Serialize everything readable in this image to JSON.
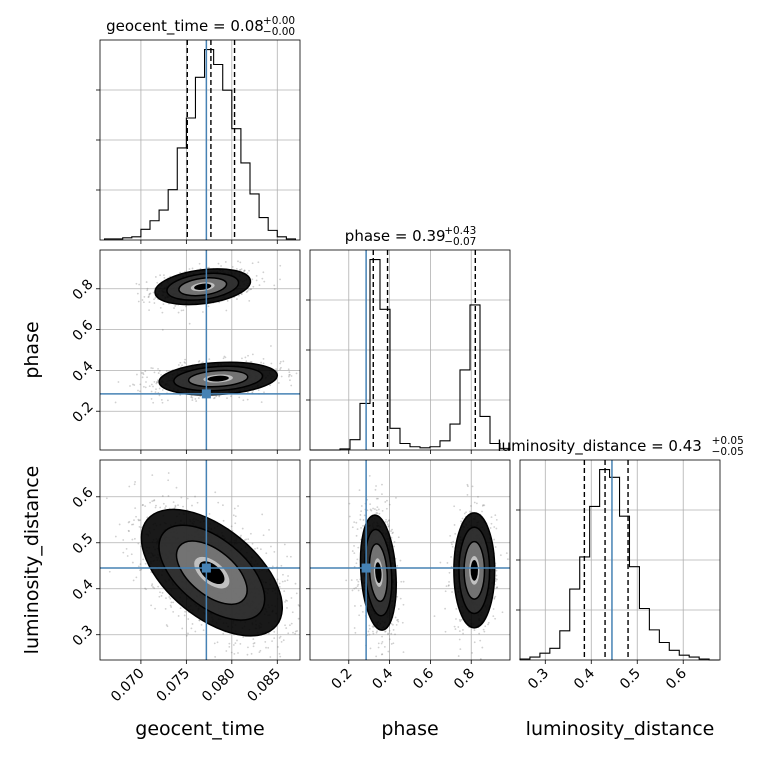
{
  "chart_data": {
    "type": "corner",
    "parameters": [
      "geocent_time",
      "phase",
      "luminosity_distance"
    ],
    "truths": [
      0.0772,
      0.285,
      0.445
    ],
    "truth_color": "#4682b4",
    "ranges": [
      [
        0.0655,
        0.0875
      ],
      [
        0.01,
        0.99
      ],
      [
        0.245,
        0.68
      ]
    ],
    "grid": true,
    "titles": [
      {
        "param": "geocent_time",
        "value": "0.08",
        "plus": "+0.00",
        "minus": "−0.00"
      },
      {
        "param": "phase",
        "value": "0.39",
        "plus": "+0.43",
        "minus": "−0.07"
      },
      {
        "param": "luminosity_distance",
        "value": "0.43",
        "plus": "+0.05",
        "minus": "−0.05"
      }
    ],
    "axis_labels": {
      "x": [
        "geocent_time",
        "phase",
        "luminosity_distance"
      ],
      "y": [
        "phase",
        "luminosity_distance"
      ]
    },
    "ticks": {
      "geocent_time": [
        "0.070",
        "0.075",
        "0.080",
        "0.085"
      ],
      "phase": [
        "0.2",
        "0.4",
        "0.6",
        "0.8"
      ],
      "luminosity_distance": [
        "0.3",
        "0.4",
        "0.5",
        "0.6"
      ]
    },
    "ticks_numeric": {
      "geocent_time": [
        0.07,
        0.075,
        0.08,
        0.085
      ],
      "phase": [
        0.2,
        0.4,
        0.6,
        0.8
      ],
      "luminosity_distance": [
        0.3,
        0.4,
        0.5,
        0.6
      ]
    },
    "quantiles": [
      [
        0.0751,
        0.0777,
        0.0803
      ],
      [
        0.32,
        0.39,
        0.82
      ],
      [
        0.385,
        0.43,
        0.48
      ]
    ],
    "histograms": [
      {
        "param": "geocent_time",
        "edges": [
          0.066,
          0.067,
          0.068,
          0.069,
          0.07,
          0.071,
          0.072,
          0.073,
          0.074,
          0.075,
          0.076,
          0.077,
          0.078,
          0.079,
          0.08,
          0.081,
          0.082,
          0.083,
          0.084,
          0.085,
          0.086,
          0.087
        ],
        "counts": [
          1,
          1,
          2,
          3,
          10,
          18,
          28,
          47,
          86,
          114,
          152,
          178,
          164,
          140,
          104,
          72,
          43,
          21,
          9,
          3,
          1
        ]
      },
      {
        "param": "phase",
        "edges": [
          0.01,
          0.059,
          0.108,
          0.157,
          0.206,
          0.255,
          0.304,
          0.353,
          0.402,
          0.451,
          0.5,
          0.549,
          0.598,
          0.647,
          0.696,
          0.745,
          0.794,
          0.843,
          0.892,
          0.941,
          0.99
        ],
        "counts": [
          0,
          0,
          0,
          2,
          19,
          86,
          352,
          260,
          40,
          12,
          6,
          4,
          6,
          17,
          48,
          148,
          268,
          62,
          12,
          3
        ]
      },
      {
        "param": "luminosity_distance",
        "edges": [
          0.245,
          0.2666,
          0.2883,
          0.3099,
          0.3316,
          0.3532,
          0.3749,
          0.3965,
          0.4182,
          0.4398,
          0.4615,
          0.4831,
          0.5048,
          0.5264,
          0.5481,
          0.5697,
          0.5914,
          0.613,
          0.6347,
          0.6563,
          0.678
        ],
        "counts": [
          1,
          3,
          7,
          12,
          30,
          73,
          106,
          158,
          196,
          188,
          148,
          96,
          53,
          31,
          18,
          10,
          5,
          3,
          1,
          0
        ]
      }
    ],
    "contour_panels": [
      {
        "x": "geocent_time",
        "y": "phase",
        "modes": [
          {
            "cx": 0.0768,
            "cy": 0.81,
            "sx": 0.0021,
            "sy": 0.035,
            "rho": 0.3,
            "weight": 0.45
          },
          {
            "cx": 0.0785,
            "cy": 0.36,
            "sx": 0.0026,
            "sy": 0.032,
            "rho": 0.2,
            "weight": 0.55
          }
        ]
      },
      {
        "x": "geocent_time",
        "y": "luminosity_distance",
        "modes": [
          {
            "cx": 0.0778,
            "cy": 0.435,
            "sx": 0.0031,
            "sy": 0.055,
            "rho": -0.55,
            "weight": 1.0
          }
        ]
      },
      {
        "x": "phase",
        "y": "luminosity_distance",
        "modes": [
          {
            "cx": 0.345,
            "cy": 0.435,
            "sx": 0.035,
            "sy": 0.05,
            "rho": -0.2,
            "weight": 0.55
          },
          {
            "cx": 0.815,
            "cy": 0.44,
            "sx": 0.04,
            "sy": 0.05,
            "rho": 0.0,
            "weight": 0.45
          }
        ]
      }
    ],
    "contour_levels_sigma": [
      0.5,
      1.0,
      1.5,
      2.0
    ]
  }
}
